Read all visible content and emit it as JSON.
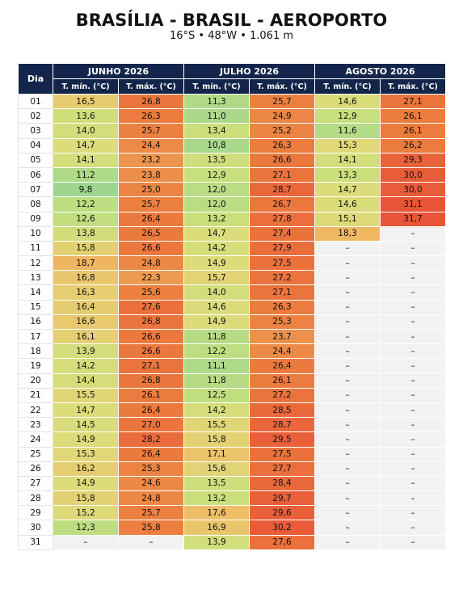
{
  "header": {
    "title": "BRASÍLIA - BRASIL - AEROPORTO",
    "subtitle": "16°S • 48°W • 1.061 m"
  },
  "table": {
    "day_header": "Dia",
    "months": [
      "JUNHO 2026",
      "JULHO 2026",
      "AGOSTO 2026"
    ],
    "subheaders": [
      "T. mín. (°C)",
      "T. máx. (°C)",
      "T. mín. (°C)",
      "T. máx. (°C)",
      "T. mín. (°C)",
      "T. máx. (°C)"
    ],
    "rows": [
      [
        "01",
        "16,5",
        "26,8",
        "11,3",
        "25,7",
        "14,6",
        "27,1"
      ],
      [
        "02",
        "13,6",
        "26,3",
        "11,0",
        "24,9",
        "12,9",
        "26,1"
      ],
      [
        "03",
        "14,0",
        "25,7",
        "13,4",
        "25,2",
        "11,6",
        "26,1"
      ],
      [
        "04",
        "14,7",
        "24,4",
        "10,8",
        "26,3",
        "15,3",
        "26,2"
      ],
      [
        "05",
        "14,1",
        "23,2",
        "13,5",
        "26,6",
        "14,1",
        "29,3"
      ],
      [
        "06",
        "11,2",
        "23,8",
        "12,9",
        "27,1",
        "13,3",
        "30,0"
      ],
      [
        "07",
        "9,8",
        "25,0",
        "12,0",
        "28,7",
        "14,7",
        "30,0"
      ],
      [
        "08",
        "12,2",
        "25,7",
        "12,0",
        "26,7",
        "14,6",
        "31,1"
      ],
      [
        "09",
        "12,6",
        "26,4",
        "13,2",
        "27,8",
        "15,1",
        "31,7"
      ],
      [
        "10",
        "13,8",
        "26,5",
        "14,7",
        "27,4",
        "18,3",
        "–"
      ],
      [
        "11",
        "15,8",
        "26,6",
        "14,2",
        "27,9",
        "–",
        "–"
      ],
      [
        "12",
        "18,7",
        "24,8",
        "14,9",
        "27,5",
        "–",
        "–"
      ],
      [
        "13",
        "16,8",
        "22,3",
        "15,7",
        "27,2",
        "–",
        "–"
      ],
      [
        "14",
        "16,3",
        "25,6",
        "14,0",
        "27,1",
        "–",
        "–"
      ],
      [
        "15",
        "16,4",
        "27,6",
        "14,6",
        "26,3",
        "–",
        "–"
      ],
      [
        "16",
        "16,6",
        "26,8",
        "14,9",
        "25,3",
        "–",
        "–"
      ],
      [
        "17",
        "16,1",
        "26,6",
        "11,8",
        "23,7",
        "–",
        "–"
      ],
      [
        "18",
        "13,9",
        "26,6",
        "12,2",
        "24,4",
        "–",
        "–"
      ],
      [
        "19",
        "14,2",
        "27,1",
        "11,1",
        "26,4",
        "–",
        "–"
      ],
      [
        "20",
        "14,4",
        "26,8",
        "11,8",
        "26,1",
        "–",
        "–"
      ],
      [
        "21",
        "15,5",
        "26,1",
        "12,5",
        "27,2",
        "–",
        "–"
      ],
      [
        "22",
        "14,7",
        "26,4",
        "14,2",
        "28,5",
        "–",
        "–"
      ],
      [
        "23",
        "14,5",
        "27,0",
        "15,5",
        "28,7",
        "–",
        "–"
      ],
      [
        "24",
        "14,9",
        "28,2",
        "15,8",
        "29,5",
        "–",
        "–"
      ],
      [
        "25",
        "15,3",
        "26,4",
        "17,1",
        "27,5",
        "–",
        "–"
      ],
      [
        "26",
        "16,2",
        "25,3",
        "15,6",
        "27,7",
        "–",
        "–"
      ],
      [
        "27",
        "14,9",
        "24,6",
        "13,5",
        "28,4",
        "–",
        "–"
      ],
      [
        "28",
        "15,8",
        "24,8",
        "13,2",
        "29,7",
        "–",
        "–"
      ],
      [
        "29",
        "15,2",
        "25,7",
        "17,6",
        "29,6",
        "–",
        "–"
      ],
      [
        "30",
        "12,3",
        "25,8",
        "16,9",
        "30,2",
        "–",
        "–"
      ],
      [
        "31",
        "–",
        "–",
        "13,9",
        "27,6",
        "–",
        "–"
      ]
    ]
  }
}
